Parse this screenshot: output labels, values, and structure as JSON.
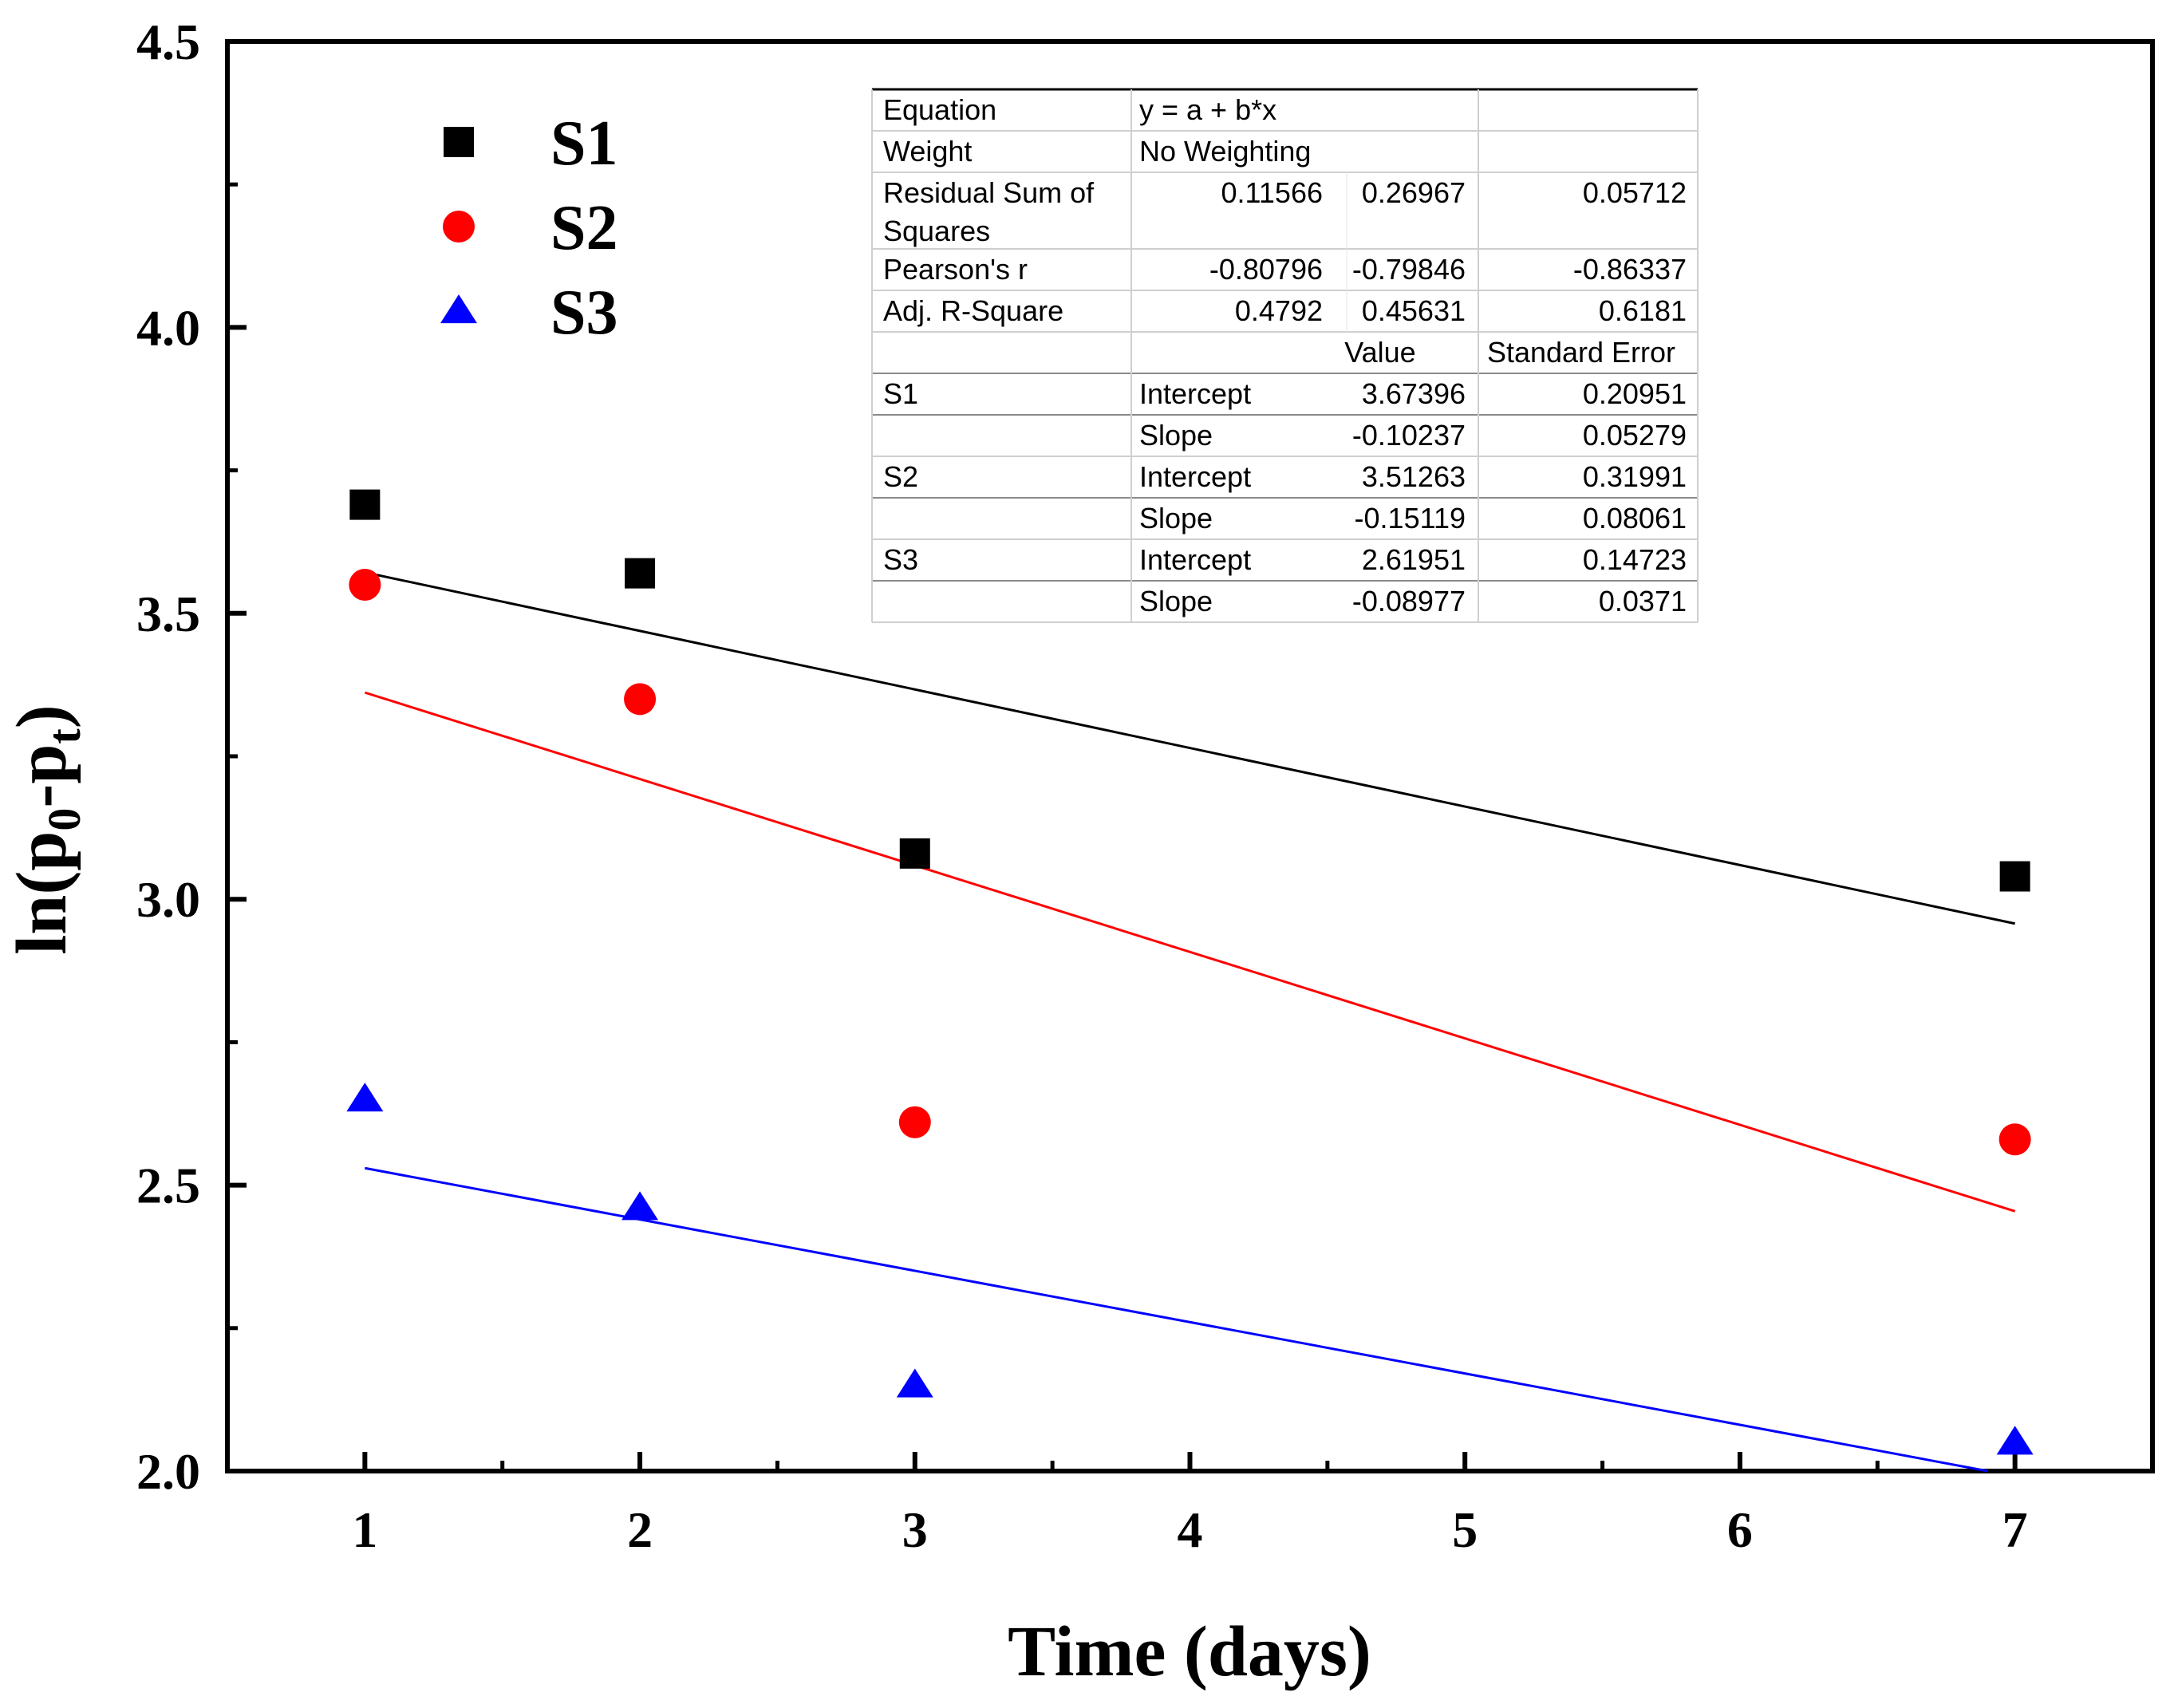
{
  "chart_data": {
    "type": "scatter",
    "xlabel": "Time (days)",
    "ylabel": "ln(p0-pt)",
    "xlim": [
      0.5,
      7.5
    ],
    "ylim": [
      2.0,
      4.5
    ],
    "xticks": [
      "1",
      "2",
      "3",
      "4",
      "5",
      "6",
      "7"
    ],
    "yticks": [
      "2.0",
      "2.5",
      "3.0",
      "3.5",
      "4.0",
      "4.5"
    ],
    "legend_position": "top-left",
    "series": [
      {
        "name": "S1",
        "marker": "square",
        "color": "#000000",
        "x": [
          1,
          2,
          3,
          7
        ],
        "y": [
          3.69,
          3.57,
          3.08,
          3.04
        ],
        "fit": {
          "intercept": 3.67396,
          "slope": -0.10237
        }
      },
      {
        "name": "S2",
        "marker": "circle",
        "color": "#ff0000",
        "x": [
          1,
          2,
          3,
          7
        ],
        "y": [
          3.55,
          3.35,
          2.61,
          2.58
        ],
        "fit": {
          "intercept": 3.51263,
          "slope": -0.15119
        }
      },
      {
        "name": "S3",
        "marker": "triangle",
        "color": "#0000ff",
        "x": [
          1,
          2,
          3,
          7
        ],
        "y": [
          2.65,
          2.46,
          2.15,
          2.05
        ],
        "fit": {
          "intercept": 2.61951,
          "slope": -0.08977
        }
      }
    ],
    "fit_table": {
      "rows": [
        [
          "Equation",
          "y = a + b*x",
          "",
          ""
        ],
        [
          "Weight",
          "No Weighting",
          "",
          ""
        ],
        [
          "Residual Sum of Squares",
          "0.11566",
          "0.26967",
          "0.05712"
        ],
        [
          "Pearson's r",
          "-0.80796",
          "-0.79846",
          "-0.86337"
        ],
        [
          "Adj. R-Square",
          "0.4792",
          "0.45631",
          "0.6181"
        ],
        [
          "",
          "",
          "Value",
          "Standard Error"
        ],
        [
          "S1",
          "Intercept",
          "3.67396",
          "0.20951"
        ],
        [
          "",
          "Slope",
          "-0.10237",
          "0.05279"
        ],
        [
          "S2",
          "Intercept",
          "3.51263",
          "0.31991"
        ],
        [
          "",
          "Slope",
          "-0.15119",
          "0.08061"
        ],
        [
          "S3",
          "Intercept",
          "2.61951",
          "0.14723"
        ],
        [
          "",
          "Slope",
          "-0.08977",
          "0.0371"
        ]
      ]
    }
  }
}
